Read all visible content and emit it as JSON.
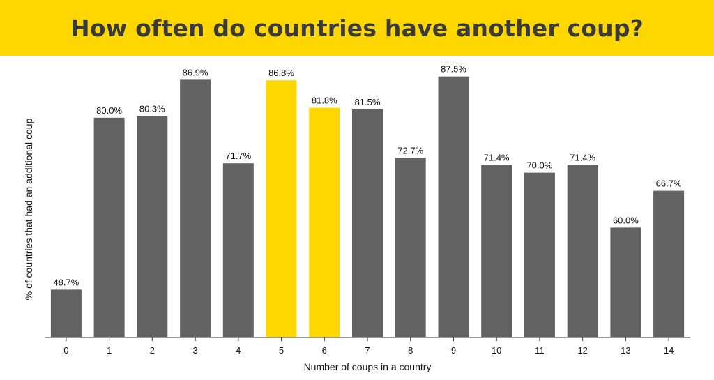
{
  "header": {
    "title": "How often do countries have another coup?"
  },
  "colors": {
    "banner": "#FFD700",
    "title_text": "#3A3A3A",
    "bar_default": "#626262",
    "bar_highlight": "#FFD700",
    "axis": "#333333"
  },
  "chart_data": {
    "type": "bar",
    "title": "How often do countries have another coup?",
    "xlabel": "Number of coups in a country",
    "ylabel": "% of countries that had an additional coup",
    "categories": [
      "0",
      "1",
      "2",
      "3",
      "4",
      "5",
      "6",
      "7",
      "8",
      "9",
      "10",
      "11",
      "12",
      "13",
      "14"
    ],
    "values": [
      48.7,
      80.0,
      80.3,
      86.9,
      71.7,
      86.8,
      81.8,
      81.5,
      72.7,
      87.5,
      71.4,
      70.0,
      71.4,
      60.0,
      66.7
    ],
    "value_labels": [
      "48.7%",
      "80.0%",
      "80.3%",
      "86.9%",
      "71.7%",
      "86.8%",
      "81.8%",
      "81.5%",
      "72.7%",
      "87.5%",
      "71.4%",
      "70.0%",
      "71.4%",
      "60.0%",
      "66.7%"
    ],
    "highlighted_categories": [
      "5",
      "6"
    ],
    "ylim": [
      40,
      90
    ],
    "grid": false,
    "legend": "none"
  }
}
